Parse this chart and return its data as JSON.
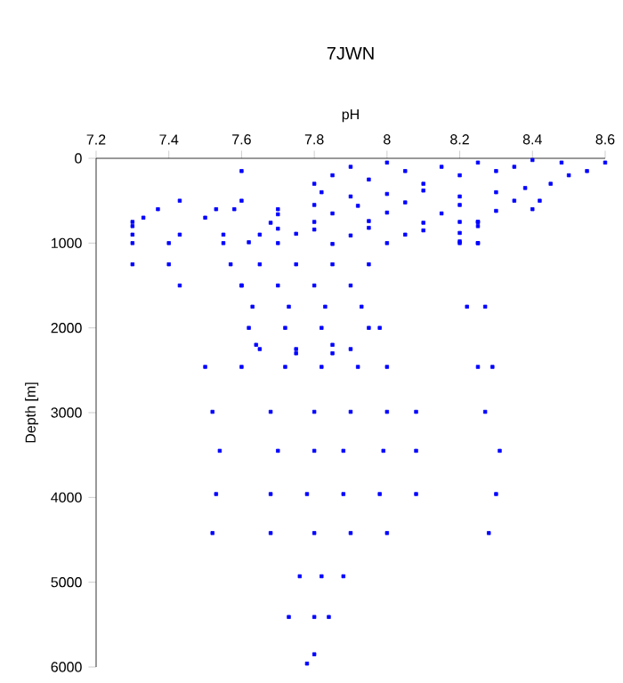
{
  "chart_data": {
    "type": "scatter",
    "title": "7JWN",
    "xlabel": "pH",
    "ylabel": "Depth [m]",
    "xlim": [
      7.2,
      8.6
    ],
    "xticks": [
      7.2,
      7.4,
      7.6,
      7.8,
      8,
      8.2,
      8.4,
      8.6
    ],
    "ylim": [
      6000,
      0
    ],
    "yticks": [
      0,
      1000,
      2000,
      3000,
      4000,
      5000,
      6000
    ],
    "marker": "square",
    "grid": false,
    "series": [
      {
        "color": "#0000ff",
        "x": [
          8.6,
          8.55,
          8.5,
          8.48,
          8.45,
          8.4,
          8.35,
          8.3,
          8.25,
          8.2,
          8.15,
          8.1,
          8.05,
          8.0,
          7.95,
          7.9,
          7.85,
          7.8,
          8.38,
          8.3,
          8.2,
          8.1,
          8.0,
          7.9,
          7.82,
          8.35,
          8.2,
          8.05,
          7.92,
          7.8,
          7.7,
          8.42,
          8.3,
          8.15,
          8.0,
          7.85,
          7.7,
          7.6,
          8.4,
          8.25,
          8.1,
          7.95,
          7.8,
          7.68,
          8.25,
          8.1,
          7.95,
          7.8,
          7.7,
          8.2,
          8.05,
          7.9,
          7.75,
          7.65,
          8.25,
          8.2,
          8.0,
          7.85,
          7.7,
          7.62,
          7.3,
          7.33,
          7.37,
          7.43,
          7.5,
          7.53,
          7.55,
          7.58,
          7.6,
          7.3,
          7.3,
          7.3,
          7.3,
          7.4,
          7.43,
          7.4,
          7.43,
          7.55,
          7.57,
          7.6,
          8.2,
          8.25,
          8.2,
          8.25,
          8.22,
          8.27,
          7.65,
          7.75,
          7.85,
          7.95,
          7.6,
          7.7,
          7.8,
          7.9,
          7.63,
          7.73,
          7.83,
          7.93,
          7.62,
          7.72,
          7.82,
          7.95,
          7.64,
          7.75,
          7.85,
          7.9,
          7.65,
          7.75,
          7.85,
          7.98,
          7.5,
          7.6,
          7.72,
          7.82,
          7.92,
          8.0,
          8.25,
          8.29,
          7.52,
          7.68,
          7.8,
          7.9,
          8.0,
          8.08,
          8.27,
          7.54,
          7.7,
          7.8,
          7.88,
          7.99,
          8.08,
          8.31,
          7.53,
          7.68,
          7.78,
          7.88,
          7.98,
          8.08,
          8.3,
          7.52,
          7.68,
          7.8,
          7.9,
          8.0,
          8.28,
          7.76,
          7.82,
          7.88,
          7.73,
          7.8,
          7.84,
          7.78,
          7.8
        ],
        "values": [
          50,
          150,
          200,
          50,
          300,
          20,
          100,
          150,
          50,
          200,
          100,
          300,
          150,
          50,
          250,
          100,
          200,
          300,
          350,
          400,
          450,
          380,
          420,
          450,
          400,
          500,
          550,
          520,
          560,
          550,
          600,
          500,
          620,
          650,
          640,
          650,
          660,
          500,
          600,
          750,
          760,
          740,
          750,
          760,
          800,
          850,
          820,
          840,
          830,
          880,
          900,
          910,
          890,
          900,
          1000,
          980,
          1000,
          1010,
          1000,
          990,
          750,
          700,
          600,
          500,
          700,
          600,
          900,
          600,
          150,
          800,
          900,
          1000,
          1250,
          1000,
          900,
          1250,
          1500,
          1000,
          1250,
          1500,
          750,
          750,
          1000,
          1000,
          1750,
          1750,
          1250,
          1250,
          1250,
          1250,
          1500,
          1500,
          1500,
          1500,
          1750,
          1750,
          1750,
          1750,
          2000,
          2000,
          2000,
          2000,
          2200,
          2250,
          2300,
          2250,
          2250,
          2300,
          2200,
          2000,
          2460,
          2460,
          2460,
          2460,
          2460,
          2460,
          2460,
          2460,
          2990,
          2990,
          2990,
          2990,
          2990,
          2990,
          2990,
          3450,
          3450,
          3450,
          3450,
          3450,
          3450,
          3450,
          3960,
          3960,
          3960,
          3960,
          3960,
          3960,
          3960,
          4420,
          4420,
          4420,
          4420,
          4420,
          4420,
          4930,
          4930,
          4930,
          5410,
          5410,
          5410,
          5960,
          5850
        ]
      }
    ]
  }
}
